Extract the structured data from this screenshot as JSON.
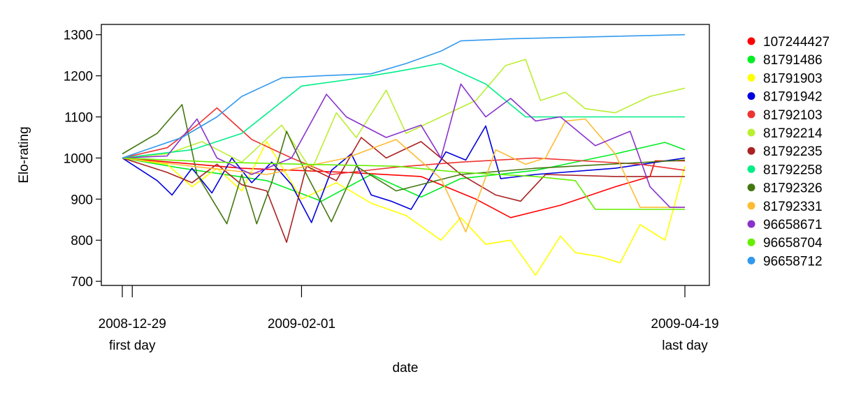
{
  "chart_data": {
    "type": "line",
    "xlabel": "date",
    "ylabel": "Elo-rating",
    "x_range": [
      "2008-12-27",
      "2009-04-19"
    ],
    "ylim": [
      690,
      1325
    ],
    "y_ticks": [
      700,
      800,
      900,
      1000,
      1100,
      1200,
      1300
    ],
    "x_ticks": [
      {
        "date": "2008-12-27",
        "label": "",
        "sublabel": ""
      },
      {
        "date": "2008-12-29",
        "label": "2008-12-29",
        "sublabel": "first day"
      },
      {
        "date": "2009-02-01",
        "label": "2009-02-01",
        "sublabel": ""
      },
      {
        "date": "2009-04-19",
        "label": "2009-04-19",
        "sublabel": "last day"
      }
    ],
    "grid": false,
    "legend_position": "right",
    "series": [
      {
        "name": "107244427",
        "color": "#FF0000",
        "points": [
          [
            "2008-12-27",
            1000
          ],
          [
            "2009-01-20",
            975
          ],
          [
            "2009-02-10",
            965
          ],
          [
            "2009-02-25",
            955
          ],
          [
            "2009-03-08",
            900
          ],
          [
            "2009-03-15",
            855
          ],
          [
            "2009-03-25",
            885
          ],
          [
            "2009-04-05",
            930
          ],
          [
            "2009-04-12",
            955
          ],
          [
            "2009-04-13",
            993
          ],
          [
            "2009-04-19",
            993
          ]
        ]
      },
      {
        "name": "81791486",
        "color": "#00EE22",
        "points": [
          [
            "2008-12-27",
            1000
          ],
          [
            "2009-01-08",
            975
          ],
          [
            "2009-01-25",
            945
          ],
          [
            "2009-02-05",
            895
          ],
          [
            "2009-02-15",
            960
          ],
          [
            "2009-02-25",
            905
          ],
          [
            "2009-03-05",
            950
          ],
          [
            "2009-03-20",
            970
          ],
          [
            "2009-04-05",
            1010
          ],
          [
            "2009-04-15",
            1038
          ],
          [
            "2009-04-19",
            1020
          ]
        ]
      },
      {
        "name": "81791903",
        "color": "#FFFF00",
        "points": [
          [
            "2008-12-27",
            1000
          ],
          [
            "2009-01-05",
            985
          ],
          [
            "2009-01-10",
            930
          ],
          [
            "2009-01-15",
            975
          ],
          [
            "2009-01-20",
            920
          ],
          [
            "2009-01-25",
            1040
          ],
          [
            "2009-02-01",
            900
          ],
          [
            "2009-02-08",
            940
          ],
          [
            "2009-02-15",
            890
          ],
          [
            "2009-02-22",
            860
          ],
          [
            "2009-03-01",
            800
          ],
          [
            "2009-03-05",
            855
          ],
          [
            "2009-03-10",
            790
          ],
          [
            "2009-03-15",
            800
          ],
          [
            "2009-03-20",
            715
          ],
          [
            "2009-03-25",
            810
          ],
          [
            "2009-03-28",
            770
          ],
          [
            "2009-04-02",
            760
          ],
          [
            "2009-04-06",
            745
          ],
          [
            "2009-04-10",
            838
          ],
          [
            "2009-04-15",
            800
          ],
          [
            "2009-04-19",
            980
          ]
        ]
      },
      {
        "name": "81791942",
        "color": "#0000DD",
        "points": [
          [
            "2008-12-27",
            1000
          ],
          [
            "2009-01-03",
            945
          ],
          [
            "2009-01-06",
            910
          ],
          [
            "2009-01-10",
            975
          ],
          [
            "2009-01-14",
            915
          ],
          [
            "2009-01-18",
            1000
          ],
          [
            "2009-01-22",
            940
          ],
          [
            "2009-01-26",
            990
          ],
          [
            "2009-01-30",
            935
          ],
          [
            "2009-02-03",
            843
          ],
          [
            "2009-02-07",
            970
          ],
          [
            "2009-02-11",
            1010
          ],
          [
            "2009-02-15",
            910
          ],
          [
            "2009-02-19",
            895
          ],
          [
            "2009-02-23",
            875
          ],
          [
            "2009-02-27",
            955
          ],
          [
            "2009-03-02",
            1015
          ],
          [
            "2009-03-06",
            995
          ],
          [
            "2009-03-10",
            1078
          ],
          [
            "2009-03-13",
            950
          ],
          [
            "2009-03-20",
            960
          ],
          [
            "2009-04-05",
            975
          ],
          [
            "2009-04-19",
            1000
          ]
        ]
      },
      {
        "name": "81792103",
        "color": "#EE3333",
        "points": [
          [
            "2008-12-27",
            1000
          ],
          [
            "2009-01-05",
            1025
          ],
          [
            "2009-01-11",
            1080
          ],
          [
            "2009-01-15",
            1122
          ],
          [
            "2009-01-22",
            1045
          ],
          [
            "2009-01-30",
            1000
          ],
          [
            "2009-02-07",
            960
          ],
          [
            "2009-02-20",
            978
          ],
          [
            "2009-03-05",
            990
          ],
          [
            "2009-03-20",
            1000
          ],
          [
            "2009-04-10",
            985
          ],
          [
            "2009-04-19",
            970
          ]
        ]
      },
      {
        "name": "81792214",
        "color": "#BBEE33",
        "points": [
          [
            "2008-12-27",
            1000
          ],
          [
            "2009-01-05",
            1010
          ],
          [
            "2009-01-12",
            1040
          ],
          [
            "2009-01-20",
            990
          ],
          [
            "2009-01-28",
            1080
          ],
          [
            "2009-02-03",
            970
          ],
          [
            "2009-02-08",
            1110
          ],
          [
            "2009-02-12",
            1050
          ],
          [
            "2009-02-18",
            1165
          ],
          [
            "2009-02-22",
            1060
          ],
          [
            "2009-03-01",
            1100
          ],
          [
            "2009-03-08",
            1140
          ],
          [
            "2009-03-14",
            1225
          ],
          [
            "2009-03-18",
            1240
          ],
          [
            "2009-03-21",
            1140
          ],
          [
            "2009-03-26",
            1160
          ],
          [
            "2009-03-30",
            1120
          ],
          [
            "2009-04-05",
            1110
          ],
          [
            "2009-04-12",
            1150
          ],
          [
            "2009-04-19",
            1170
          ]
        ]
      },
      {
        "name": "81792235",
        "color": "#AA2222",
        "points": [
          [
            "2008-12-27",
            1000
          ],
          [
            "2009-01-05",
            965
          ],
          [
            "2009-01-10",
            940
          ],
          [
            "2009-01-15",
            985
          ],
          [
            "2009-01-20",
            935
          ],
          [
            "2009-01-25",
            920
          ],
          [
            "2009-01-29",
            795
          ],
          [
            "2009-02-02",
            980
          ],
          [
            "2009-02-08",
            945
          ],
          [
            "2009-02-13",
            1050
          ],
          [
            "2009-02-18",
            1000
          ],
          [
            "2009-02-25",
            1040
          ],
          [
            "2009-03-05",
            960
          ],
          [
            "2009-03-12",
            910
          ],
          [
            "2009-03-17",
            895
          ],
          [
            "2009-03-22",
            960
          ],
          [
            "2009-04-05",
            955
          ],
          [
            "2009-04-19",
            955
          ]
        ]
      },
      {
        "name": "81792258",
        "color": "#00EE88",
        "points": [
          [
            "2008-12-27",
            1000
          ],
          [
            "2009-01-10",
            1020
          ],
          [
            "2009-01-20",
            1060
          ],
          [
            "2009-02-01",
            1175
          ],
          [
            "2009-02-10",
            1190
          ],
          [
            "2009-02-20",
            1210
          ],
          [
            "2009-03-01",
            1230
          ],
          [
            "2009-03-10",
            1180
          ],
          [
            "2009-03-18",
            1100
          ],
          [
            "2009-04-19",
            1100
          ]
        ]
      },
      {
        "name": "81792326",
        "color": "#447711",
        "points": [
          [
            "2008-12-27",
            1010
          ],
          [
            "2009-01-03",
            1060
          ],
          [
            "2009-01-08",
            1130
          ],
          [
            "2009-01-11",
            960
          ],
          [
            "2009-01-14",
            900
          ],
          [
            "2009-01-17",
            840
          ],
          [
            "2009-01-20",
            960
          ],
          [
            "2009-01-23",
            840
          ],
          [
            "2009-01-26",
            940
          ],
          [
            "2009-01-29",
            1065
          ],
          [
            "2009-02-02",
            960
          ],
          [
            "2009-02-07",
            845
          ],
          [
            "2009-02-12",
            980
          ],
          [
            "2009-02-20",
            920
          ],
          [
            "2009-03-05",
            960
          ],
          [
            "2009-03-20",
            975
          ],
          [
            "2009-04-19",
            995
          ]
        ]
      },
      {
        "name": "81792331",
        "color": "#FFBB33",
        "points": [
          [
            "2008-12-27",
            1000
          ],
          [
            "2009-01-10",
            980
          ],
          [
            "2009-01-25",
            960
          ],
          [
            "2009-02-10",
            1000
          ],
          [
            "2009-02-20",
            1045
          ],
          [
            "2009-03-01",
            950
          ],
          [
            "2009-03-06",
            820
          ],
          [
            "2009-03-12",
            1020
          ],
          [
            "2009-03-18",
            985
          ],
          [
            "2009-03-22",
            1000
          ],
          [
            "2009-03-26",
            1090
          ],
          [
            "2009-03-30",
            1095
          ],
          [
            "2009-04-05",
            1010
          ],
          [
            "2009-04-10",
            880
          ],
          [
            "2009-04-19",
            880
          ]
        ]
      },
      {
        "name": "96658671",
        "color": "#8833CC",
        "points": [
          [
            "2008-12-27",
            1000
          ],
          [
            "2009-01-05",
            1005
          ],
          [
            "2009-01-11",
            1095
          ],
          [
            "2009-01-15",
            1000
          ],
          [
            "2009-01-22",
            960
          ],
          [
            "2009-01-30",
            1000
          ],
          [
            "2009-02-06",
            1155
          ],
          [
            "2009-02-10",
            1100
          ],
          [
            "2009-02-18",
            1050
          ],
          [
            "2009-02-25",
            1080
          ],
          [
            "2009-03-01",
            1000
          ],
          [
            "2009-03-05",
            1180
          ],
          [
            "2009-03-10",
            1100
          ],
          [
            "2009-03-15",
            1145
          ],
          [
            "2009-03-20",
            1090
          ],
          [
            "2009-03-25",
            1100
          ],
          [
            "2009-04-01",
            1030
          ],
          [
            "2009-04-08",
            1065
          ],
          [
            "2009-04-12",
            930
          ],
          [
            "2009-04-16",
            880
          ],
          [
            "2009-04-19",
            880
          ]
        ]
      },
      {
        "name": "96658704",
        "color": "#66EE00",
        "points": [
          [
            "2008-12-27",
            1000
          ],
          [
            "2009-01-15",
            990
          ],
          [
            "2009-02-01",
            985
          ],
          [
            "2009-02-20",
            980
          ],
          [
            "2009-03-05",
            965
          ],
          [
            "2009-03-20",
            955
          ],
          [
            "2009-03-28",
            945
          ],
          [
            "2009-04-01",
            875
          ],
          [
            "2009-04-19",
            875
          ]
        ]
      },
      {
        "name": "96658712",
        "color": "#3399EE",
        "points": [
          [
            "2008-12-27",
            1000
          ],
          [
            "2009-01-08",
            1050
          ],
          [
            "2009-01-15",
            1100
          ],
          [
            "2009-01-20",
            1150
          ],
          [
            "2009-01-28",
            1195
          ],
          [
            "2009-02-05",
            1200
          ],
          [
            "2009-02-15",
            1205
          ],
          [
            "2009-02-22",
            1230
          ],
          [
            "2009-03-01",
            1260
          ],
          [
            "2009-03-05",
            1285
          ],
          [
            "2009-03-15",
            1290
          ],
          [
            "2009-04-19",
            1300
          ]
        ]
      }
    ]
  }
}
